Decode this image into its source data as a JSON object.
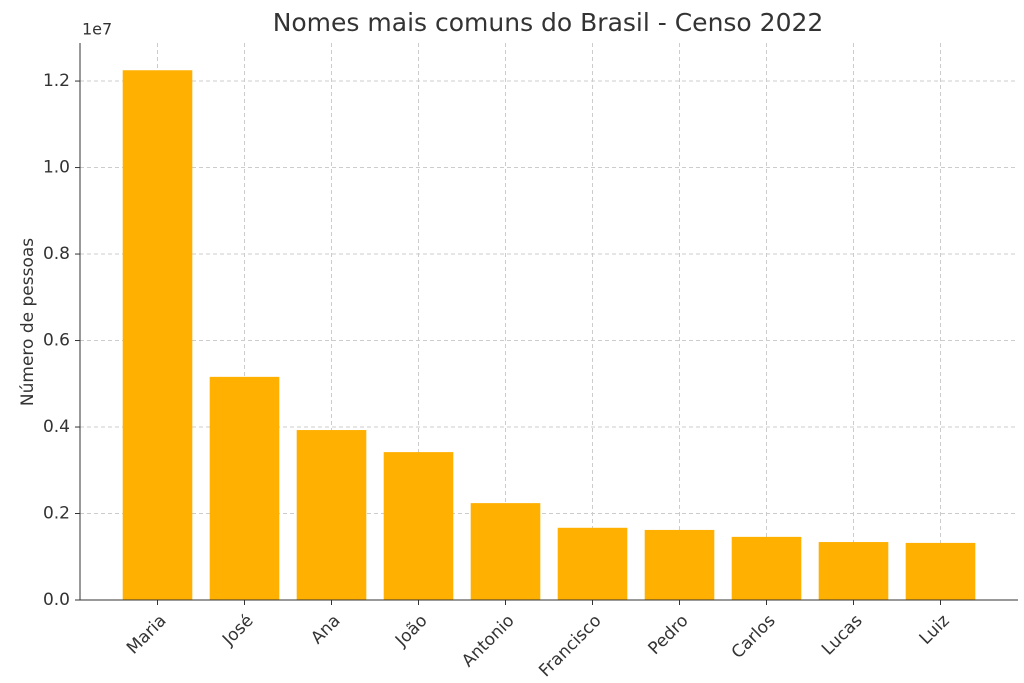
{
  "chart_data": {
    "type": "bar",
    "title": "Nomes mais comuns do Brasil - Censo 2022",
    "y_label": "Número de pessoas",
    "y_offset_label": "1e7",
    "categories": [
      "Maria",
      "José",
      "Ana",
      "João",
      "Antonio",
      "Francisco",
      "Pedro",
      "Carlos",
      "Lucas",
      "Luiz"
    ],
    "values": [
      12250000,
      5160000,
      3930000,
      3420000,
      2240000,
      1670000,
      1620000,
      1460000,
      1340000,
      1320000
    ],
    "color": "#ffb000",
    "ylim": [
      0,
      12880000
    ],
    "yticks": [
      {
        "value": 0,
        "label": "0.0"
      },
      {
        "value": 2000000,
        "label": "0.2"
      },
      {
        "value": 4000000,
        "label": "0.4"
      },
      {
        "value": 6000000,
        "label": "0.6"
      },
      {
        "value": 8000000,
        "label": "0.8"
      },
      {
        "value": 10000000,
        "label": "1.0"
      },
      {
        "value": 12000000,
        "label": "1.2"
      }
    ],
    "grid": true
  }
}
